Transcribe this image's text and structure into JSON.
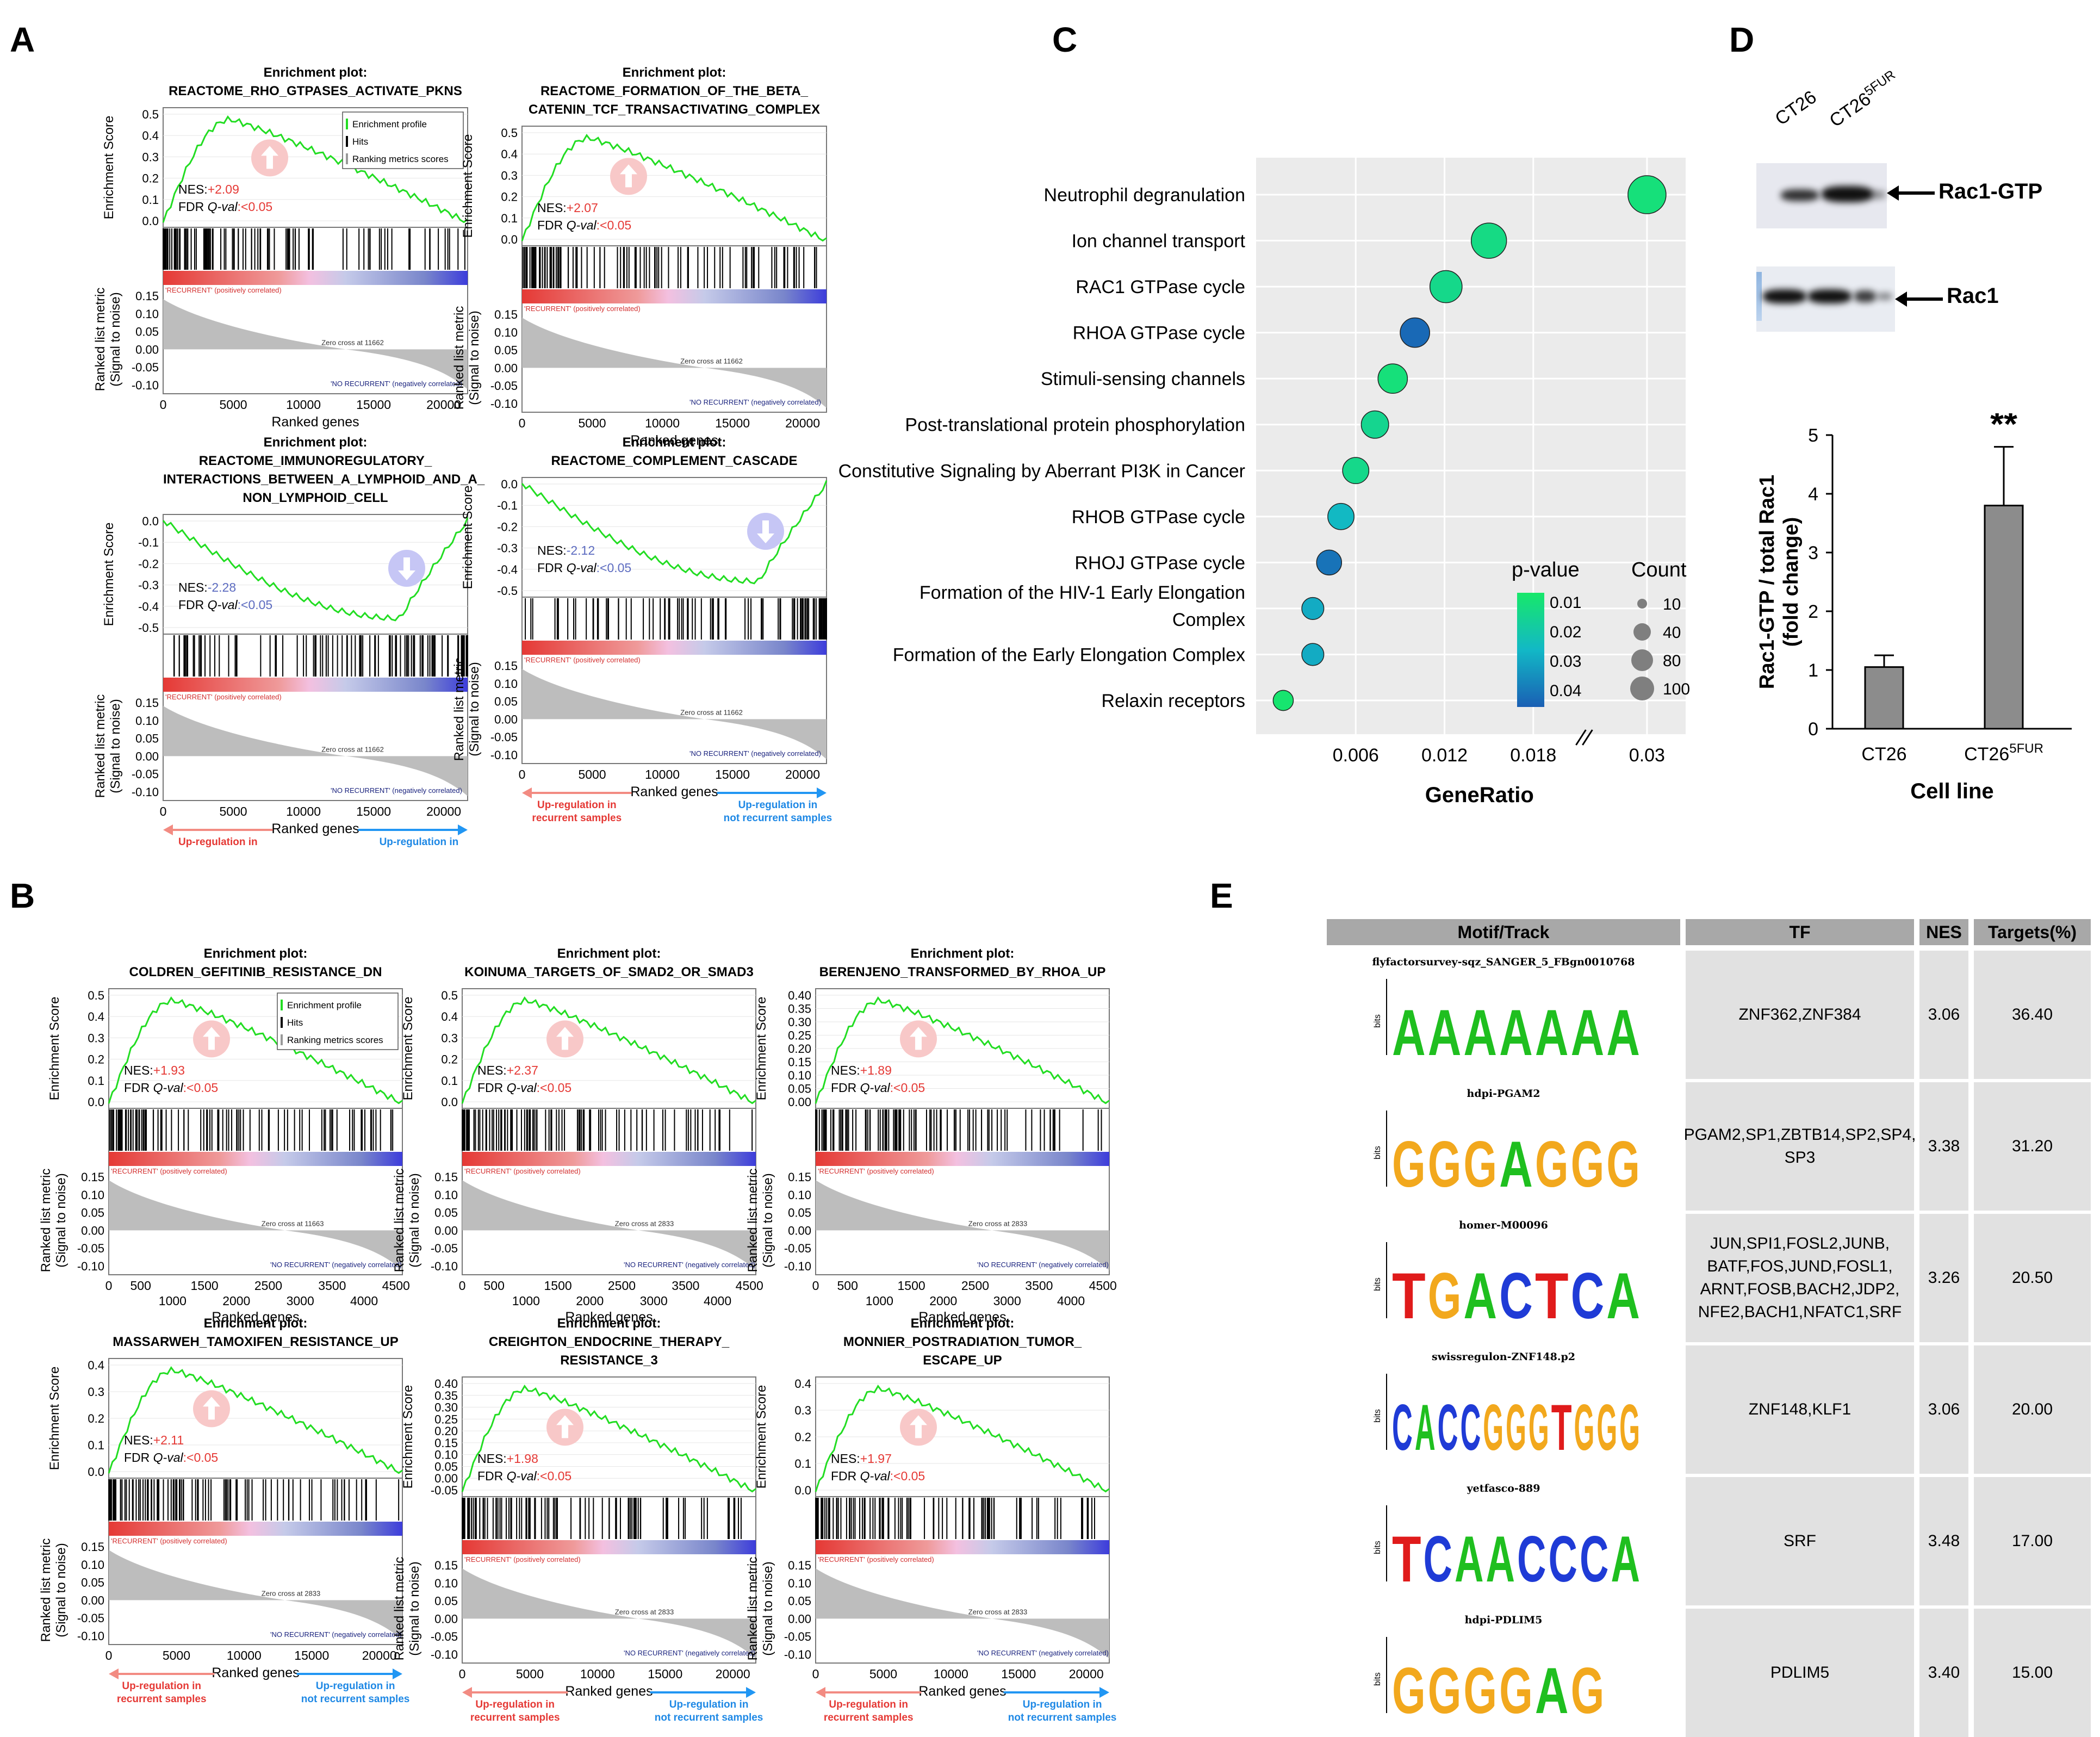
{
  "panels": {
    "A": "A",
    "B": "B",
    "C": "C",
    "D": "D",
    "E": "E"
  },
  "gsea_common": {
    "es_label": "Enrichment Score",
    "rank_label_1": "Ranked list metric",
    "rank_label_2": "(Signal to noise)",
    "x_label": "Ranked genes",
    "legend_profile": "Enrichment profile",
    "legend_hits": "Hits",
    "legend_rank": "Ranking metrics scores",
    "recurrent": "'RECURRENT' (positively correlated)",
    "no_recurrent": "'NO RECURRENT' (negatively correlated)",
    "nes_label": "NES:",
    "fdr_label": "FDR ",
    "fdr_q": "Q-val",
    "up_rec_1": "Up-regulation in",
    "up_rec_2": "recurrent samples",
    "up_not_1": "Up-regulation in",
    "up_not_2": "not recurrent samples",
    "plot_header": "Enrichment plot:"
  },
  "panel_a": [
    {
      "title_lines": [
        "REACTOME_RHO_GTPASES_ACTIVATE_PKNS"
      ],
      "nes": "+2.09",
      "fdr": ":<0.05",
      "direction": "up",
      "zero_cross": "Zero cross at 11662",
      "es_ticks": [
        "0.5",
        "0.4",
        "0.3",
        "0.2",
        "0.1",
        "0.0"
      ],
      "rank_ticks": [
        "0.15",
        "0.10",
        "0.05",
        "0.00",
        "-0.05",
        "-0.10"
      ],
      "x_ticks": [
        "0",
        "5000",
        "10000",
        "15000",
        "20000"
      ],
      "legend": true
    },
    {
      "title_lines": [
        "REACTOME_FORMATION_OF_THE_BETA_",
        "CATENIN_TCF_TRANSACTIVATING_COMPLEX"
      ],
      "nes": "+2.07",
      "fdr": ":<0.05",
      "direction": "up",
      "zero_cross": "Zero cross at 11662",
      "es_ticks": [
        "0.5",
        "0.4",
        "0.3",
        "0.2",
        "0.1",
        "0.0"
      ],
      "rank_ticks": [
        "0.15",
        "0.10",
        "0.05",
        "0.00",
        "-0.05",
        "-0.10"
      ],
      "x_ticks": [
        "0",
        "5000",
        "10000",
        "15000",
        "20000"
      ],
      "legend": false
    },
    {
      "title_lines": [
        "REACTOME_IMMUNOREGULATORY_",
        "INTERACTIONS_BETWEEN_A_LYMPHOID_AND_A_",
        "NON_LYMPHOID_CELL"
      ],
      "nes": "-2.28",
      "fdr": ":<0.05",
      "direction": "down",
      "zero_cross": "Zero cross at 11662",
      "es_ticks": [
        "0.0",
        "-0.1",
        "-0.2",
        "-0.3",
        "-0.4",
        "-0.5"
      ],
      "rank_ticks": [
        "0.15",
        "0.10",
        "0.05",
        "0.00",
        "-0.05",
        "-0.10"
      ],
      "x_ticks": [
        "0",
        "5000",
        "10000",
        "15000",
        "20000"
      ],
      "legend": false
    },
    {
      "title_lines": [
        "REACTOME_COMPLEMENT_CASCADE"
      ],
      "nes": "-2.12",
      "fdr": ":<0.05",
      "direction": "down",
      "zero_cross": "Zero cross at 11662",
      "es_ticks": [
        "0.0",
        "-0.1",
        "-0.2",
        "-0.3",
        "-0.4",
        "-0.5"
      ],
      "rank_ticks": [
        "0.15",
        "0.10",
        "0.05",
        "0.00",
        "-0.05",
        "-0.10"
      ],
      "x_ticks": [
        "0",
        "5000",
        "10000",
        "15000",
        "20000"
      ],
      "legend": false
    }
  ],
  "panel_b": [
    {
      "title_lines": [
        "COLDREN_GEFITINIB_RESISTANCE_DN"
      ],
      "nes": "+1.93",
      "fdr": ":<0.05",
      "direction": "up",
      "zero_cross": "Zero cross at 11663",
      "es_ticks": [
        "0.5",
        "0.4",
        "0.3",
        "0.2",
        "0.1",
        "0.0"
      ],
      "rank_ticks": [
        "0.15",
        "0.10",
        "0.05",
        "0.00",
        "-0.05",
        "-0.10"
      ],
      "x_ticks_top": [
        "0",
        "500",
        "1500",
        "2500",
        "3500",
        "4500"
      ],
      "x_ticks_bot": [
        "1000",
        "2000",
        "3000",
        "4000"
      ],
      "legend": true
    },
    {
      "title_lines": [
        "KOINUMA_TARGETS_OF_SMAD2_OR_SMAD3"
      ],
      "nes": "+2.37",
      "fdr": ":<0.05",
      "direction": "up",
      "zero_cross": "Zero cross at 2833",
      "es_ticks": [
        "0.5",
        "0.4",
        "0.3",
        "0.2",
        "0.1",
        "0.0"
      ],
      "rank_ticks": [
        "0.15",
        "0.10",
        "0.05",
        "0.00",
        "-0.05",
        "-0.10"
      ],
      "x_ticks_top": [
        "0",
        "500",
        "1500",
        "2500",
        "3500",
        "4500"
      ],
      "x_ticks_bot": [
        "1000",
        "2000",
        "3000",
        "4000"
      ],
      "legend": false
    },
    {
      "title_lines": [
        "BERENJENO_TRANSFORMED_BY_RHOA_UP"
      ],
      "nes": "+1.89",
      "fdr": ":<0.05",
      "direction": "up",
      "zero_cross": "Zero cross at 2833",
      "es_ticks": [
        "0.40",
        "0.35",
        "0.30",
        "0.25",
        "0.20",
        "0.15",
        "0.10",
        "0.05",
        "0.00"
      ],
      "rank_ticks": [
        "0.15",
        "0.10",
        "0.05",
        "0.00",
        "-0.05",
        "-0.10"
      ],
      "x_ticks_top": [
        "0",
        "500",
        "1500",
        "2500",
        "3500",
        "4500"
      ],
      "x_ticks_bot": [
        "1000",
        "2000",
        "3000",
        "4000"
      ],
      "legend": false
    },
    {
      "title_lines": [
        "MASSARWEH_TAMOXIFEN_RESISTANCE_UP"
      ],
      "nes": "+2.11",
      "fdr": ":<0.05",
      "direction": "up",
      "zero_cross": "Zero cross at 2833",
      "es_ticks": [
        "0.4",
        "0.3",
        "0.2",
        "0.1",
        "0.0"
      ],
      "rank_ticks": [
        "0.15",
        "0.10",
        "0.05",
        "0.00",
        "-0.05",
        "-0.10"
      ],
      "x_ticks": [
        "0",
        "5000",
        "10000",
        "15000",
        "20000"
      ],
      "legend": false
    },
    {
      "title_lines": [
        "CREIGHTON_ENDOCRINE_THERAPY_",
        "RESISTANCE_3"
      ],
      "nes": "+1.98",
      "fdr": ":<0.05",
      "direction": "up",
      "zero_cross": "Zero cross at 2833",
      "es_ticks": [
        "0.40",
        "0.35",
        "0.30",
        "0.25",
        "0.20",
        "0.15",
        "0.10",
        "0.05",
        "0.00",
        "-0.05"
      ],
      "rank_ticks": [
        "0.15",
        "0.10",
        "0.05",
        "0.00",
        "-0.05",
        "-0.10"
      ],
      "x_ticks": [
        "0",
        "5000",
        "10000",
        "15000",
        "20000"
      ],
      "legend": false
    },
    {
      "title_lines": [
        "MONNIER_POSTRADIATION_TUMOR_",
        "ESCAPE_UP"
      ],
      "nes": "+1.97",
      "fdr": ":<0.05",
      "direction": "up",
      "zero_cross": "Zero cross at 2833",
      "es_ticks": [
        "0.4",
        "0.3",
        "0.2",
        "0.1",
        "0.0"
      ],
      "rank_ticks": [
        "0.15",
        "0.10",
        "0.05",
        "0.00",
        "-0.05",
        "-0.10"
      ],
      "x_ticks": [
        "0",
        "5000",
        "10000",
        "15000",
        "20000"
      ],
      "legend": false
    }
  ],
  "chart_data": [
    {
      "type": "scatter",
      "title": "",
      "xlabel": "GeneRatio",
      "ylabel": "",
      "categories": [
        "Neutrophil degranulation",
        "Ion channel transport",
        "RAC1 GTPase cycle",
        "RHOA GTPase cycle",
        "Stimuli-sensing channels",
        "Post-translational protein phosphorylation",
        "Constitutive Signaling by Aberrant PI3K in Cancer",
        "RHOB GTPase cycle",
        "RHOJ GTPase cycle",
        "Formation of the HIV-1 Early Elongation Complex",
        "Formation of the Early Elongation Complex",
        "Relaxin receptors"
      ],
      "category_lines": [
        [
          "Neutrophil degranulation"
        ],
        [
          "Ion channel transport"
        ],
        [
          "RAC1 GTPase cycle"
        ],
        [
          "RHOA GTPase cycle"
        ],
        [
          "Stimuli-sensing channels"
        ],
        [
          "Post-translational protein phosphorylation"
        ],
        [
          "Constitutive Signaling by Aberrant PI3K in Cancer"
        ],
        [
          "RHOB GTPase cycle"
        ],
        [
          "RHOJ GTPase cycle"
        ],
        [
          "Formation of the HIV-1 Early Elongation",
          "Complex"
        ],
        [
          "Formation of the Early Elongation Complex"
        ],
        [
          "Relaxin receptors"
        ]
      ],
      "gene_ratio": [
        0.03,
        0.015,
        0.0121,
        0.01,
        0.0085,
        0.0073,
        0.006,
        0.005,
        0.0042,
        0.0031,
        0.0031,
        0.0011
      ],
      "count": [
        100,
        80,
        60,
        45,
        45,
        35,
        30,
        30,
        25,
        15,
        15,
        10
      ],
      "p_value": [
        0.008,
        0.01,
        0.011,
        0.038,
        0.008,
        0.012,
        0.011,
        0.022,
        0.036,
        0.025,
        0.025,
        0.006
      ],
      "x_ticks": [
        "0.006",
        "0.012",
        "0.018",
        "0.03"
      ],
      "x_tick_values": [
        0.006,
        0.012,
        0.018,
        0.03
      ],
      "axis_break": true,
      "legend_pvalue_title": "p-value",
      "legend_pvalue_ticks": [
        "0.01",
        "0.02",
        "0.03",
        "0.04"
      ],
      "legend_count_title": "Count",
      "legend_count_values": [
        "10",
        "40",
        "80",
        "100"
      ],
      "colors": {
        "low_p": "#17e86a",
        "high_p": "#1a5fb4",
        "panel_bg": "#ebebeb"
      }
    },
    {
      "type": "bar",
      "title": "",
      "xlabel": "Cell line",
      "ylabel_lines": [
        "Rac1-GTP / total Rac1",
        "(fold change)"
      ],
      "categories": [
        "CT26",
        "CT26"
      ],
      "category_superscript": [
        "",
        "5FUR"
      ],
      "values": [
        1.05,
        3.8
      ],
      "errors": [
        0.2,
        1.0
      ],
      "significance": [
        "",
        "**"
      ],
      "ylim": [
        0,
        5
      ],
      "y_ticks": [
        "0",
        "1",
        "2",
        "3",
        "4",
        "5"
      ],
      "colors": {
        "bar": "#8c8c8c"
      }
    }
  ],
  "western_blot": {
    "lane_1": "CT26",
    "lane_2": "CT26",
    "lane_2_sup": "5FUR",
    "band_1_label": "Rac1-GTP",
    "band_2_label": "Rac1"
  },
  "table_e": {
    "headers": [
      "Motif/Track",
      "TF",
      "NES",
      "Targets(%)"
    ],
    "rows": [
      {
        "motif_name": "flyfactorsurvey-sqz_SANGER_5_FBgn0010768",
        "tf": [
          "ZNF362,ZNF384"
        ],
        "nes": "3.06",
        "targets": "36.40"
      },
      {
        "motif_name": "hdpi-PGAM2",
        "tf": [
          "PGAM2,SP1,ZBTB14,SP2,SP4,",
          "SP3"
        ],
        "nes": "3.38",
        "targets": "31.20"
      },
      {
        "motif_name": "homer-M00096",
        "tf": [
          "JUN,SPI1,FOSL2,JUNB,",
          "BATF,FOS,JUND,FOSL1,",
          "ARNT,FOSB,BACH2,JDP2,",
          "NFE2,BACH1,NFATC1,SRF"
        ],
        "nes": "3.26",
        "targets": "20.50"
      },
      {
        "motif_name": "swissregulon-ZNF148.p2",
        "tf": [
          "ZNF148,KLF1"
        ],
        "nes": "3.06",
        "targets": "20.00"
      },
      {
        "motif_name": "yetfasco-889",
        "tf": [
          "SRF"
        ],
        "nes": "3.48",
        "targets": "17.00"
      },
      {
        "motif_name": "hdpi-PDLIM5",
        "tf": [
          "PDLIM5"
        ],
        "nes": "3.40",
        "targets": "15.00"
      }
    ],
    "logo_letters": [
      "AAAAAAA",
      "GGGAGGG",
      "TGACTCA",
      "CACCGGGTGGG",
      "TCAACCCA",
      "GGGGAG"
    ],
    "bits_label": "bits"
  }
}
